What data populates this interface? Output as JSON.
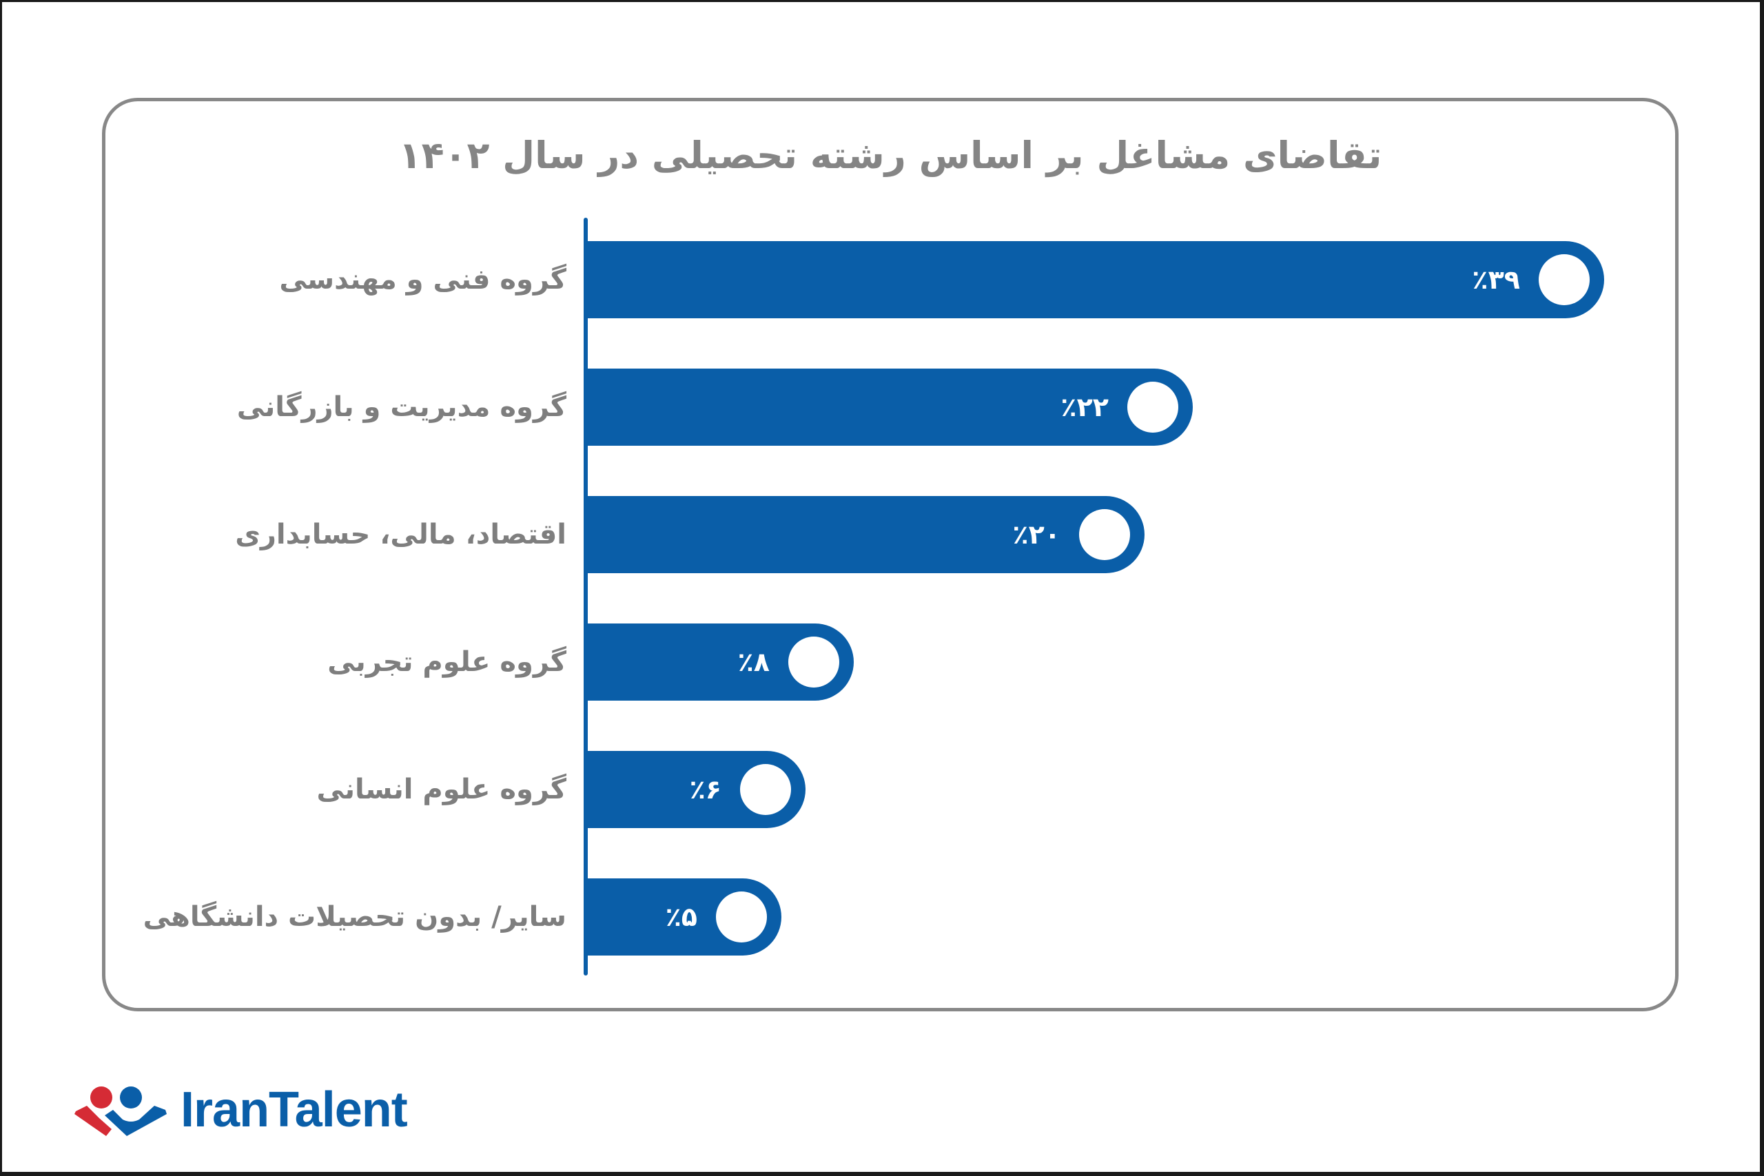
{
  "title": "تقاضای مشاغل بر اساس رشته تحصیلی در سال ۱۴۰۲",
  "colors": {
    "bar": "#0a5ea8",
    "label_text": "#7e7e7e",
    "title_text": "#858585",
    "card_border": "#888888",
    "logo_red": "#d52b35",
    "logo_blue": "#0a5ea8"
  },
  "bars": [
    {
      "label": "گروه فنی و مهندسی",
      "value": 39,
      "display": "٪۳۹"
    },
    {
      "label": "گروه مدیریت و بازرگانی",
      "value": 22,
      "display": "٪۲۲"
    },
    {
      "label": "اقتصاد، مالی، حسابداری",
      "value": 20,
      "display": "٪۲۰"
    },
    {
      "label": "گروه علوم تجربی",
      "value": 8,
      "display": "٪۸"
    },
    {
      "label": "گروه علوم انسانی",
      "value": 6,
      "display": "٪۶"
    },
    {
      "label": "سایر/ بدون تحصیلات دانشگاهی",
      "value": 5,
      "display": "٪۵"
    }
  ],
  "logo": {
    "text": "IranTalent"
  },
  "chart_data": {
    "type": "bar",
    "orientation": "horizontal",
    "title": "تقاضای مشاغل بر اساس رشته تحصیلی در سال ۱۴۰۲",
    "categories": [
      "گروه فنی و مهندسی",
      "گروه مدیریت و بازرگانی",
      "اقتصاد، مالی، حسابداری",
      "گروه علوم تجربی",
      "گروه علوم انسانی",
      "سایر/ بدون تحصیلات دانشگاهی"
    ],
    "values": [
      39,
      22,
      20,
      8,
      6,
      5
    ],
    "value_labels": [
      "٪۳۹",
      "٪۲۲",
      "٪۲۰",
      "٪۸",
      "٪۶",
      "٪۵"
    ],
    "unit": "%",
    "xlabel": "",
    "ylabel": "",
    "grid": false,
    "legend": null
  }
}
